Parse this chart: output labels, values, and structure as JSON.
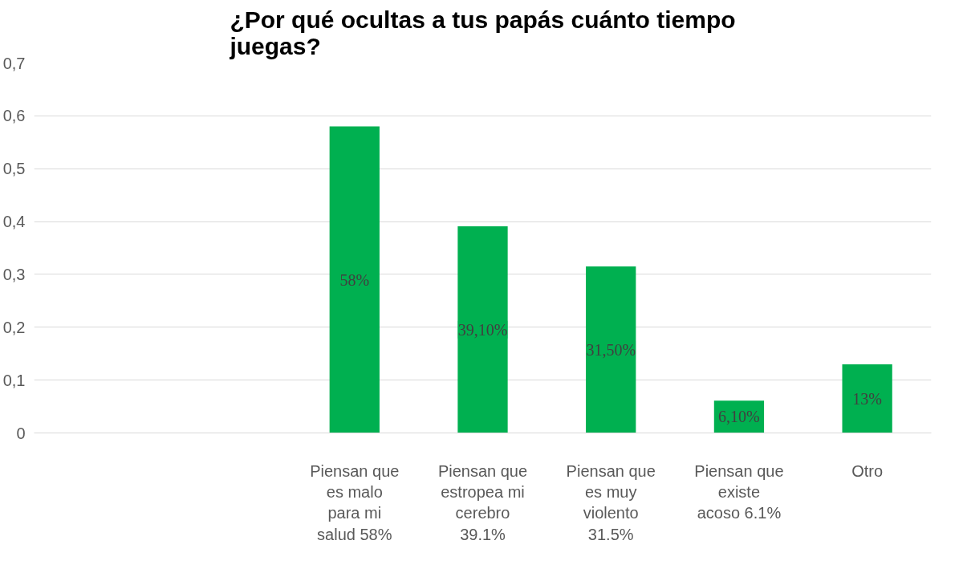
{
  "chart_data": {
    "type": "bar",
    "title": "¿Por qué ocultas a tus papás cuánto tiempo juegas?",
    "categories": [
      null,
      null,
      "Piensan que es malo para mi salud 58%",
      "Piensan que estropea mi cerebro 39.1%",
      "Piensan que es muy violento 31.5%",
      "Piensan que existe acoso 6.1%",
      "Otro"
    ],
    "values": [
      null,
      null,
      0.58,
      0.391,
      0.315,
      0.061,
      0.13
    ],
    "value_labels": [
      null,
      null,
      "58%",
      "39,10%",
      "31,50%",
      "6,10%",
      "13%"
    ],
    "color": "#00b050",
    "ylim": [
      0,
      0.7
    ],
    "yticks": [
      0,
      {
        "value": 0.1,
        "label": "0,1"
      },
      {
        "value": 0.2,
        "label": "0,2"
      },
      {
        "value": 0.3,
        "label": "0,3"
      },
      {
        "value": 0.4,
        "label": "0,4"
      },
      {
        "value": 0.5,
        "label": "0,5"
      },
      {
        "value": 0.6,
        "label": "0,6"
      },
      {
        "value": 0.7,
        "label": "0,7"
      }
    ],
    "grid": "y"
  }
}
